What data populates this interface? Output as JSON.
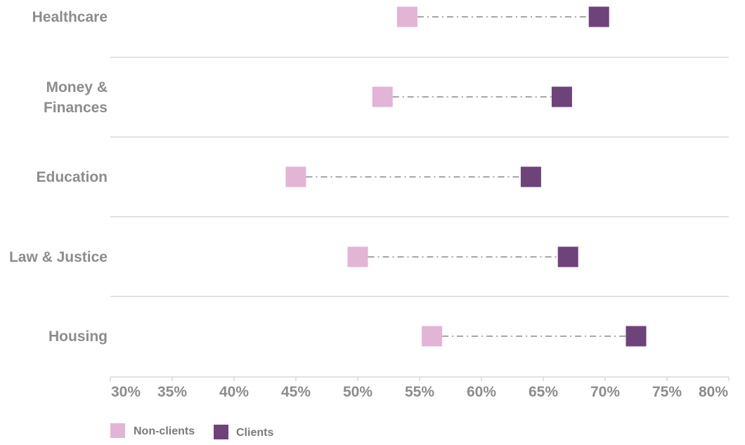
{
  "chart_data": {
    "type": "dot-range",
    "categories": [
      "Healthcare",
      "Money & Finances",
      "Education",
      "Law & Justice",
      "Housing"
    ],
    "category_label_lines": [
      [
        "Healthcare"
      ],
      [
        "Money &",
        "Finances"
      ],
      [
        "Education"
      ],
      [
        "Law & Justice"
      ],
      [
        "Housing"
      ]
    ],
    "series": [
      {
        "name": "Non-clients",
        "color": "#e2b4d6",
        "values": [
          54,
          52,
          45,
          50,
          56
        ]
      },
      {
        "name": "Clients",
        "color": "#6e4379",
        "values": [
          69.5,
          66.5,
          64,
          67,
          72.5
        ]
      }
    ],
    "x_ticks": [
      "30%",
      "35%",
      "40%",
      "45%",
      "50%",
      "55%",
      "60%",
      "65%",
      "70%",
      "75%",
      "80%"
    ],
    "xlim": [
      30,
      80
    ],
    "connector": "dash-dot gray",
    "grid": "horizontal separators between categories",
    "legend": "bottom-left"
  }
}
